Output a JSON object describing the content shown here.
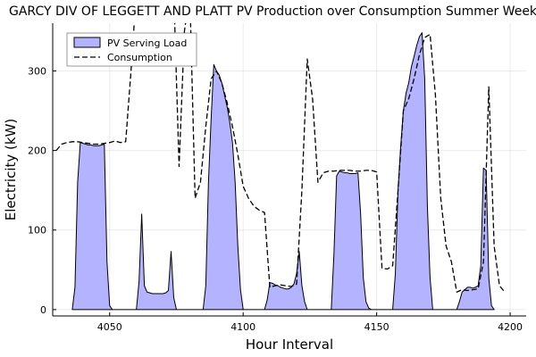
{
  "chart_data": {
    "type": "area",
    "title": "GARCY DIV OF LEGGETT AND PLATT PV Production over Consumption Summer Week",
    "xlabel": "Hour Interval",
    "ylabel": "Electricity (kW)",
    "xlim": [
      4029,
      4206
    ],
    "ylim": [
      -8,
      360
    ],
    "xticks": [
      4050,
      4100,
      4150,
      4200
    ],
    "xtick_labels": [
      "4050",
      "4100",
      "4150",
      "4200"
    ],
    "yticks": [
      0,
      100,
      200,
      300
    ],
    "ytick_labels": [
      "0",
      "100",
      "200",
      "300"
    ],
    "grid": true,
    "legend_position": "top-left",
    "series": [
      {
        "name": "PV Serving Load",
        "kind": "filled-area",
        "color": "#b3b3ff",
        "x": [
          4036,
          4037,
          4038,
          4039,
          4040,
          4041,
          4042,
          4043,
          4044,
          4045,
          4046,
          4047,
          4048,
          4049,
          4050,
          4051,
          4060,
          4061,
          4062,
          4063,
          4064,
          4065,
          4066,
          4067,
          4068,
          4069,
          4070,
          4071,
          4072,
          4073,
          4074,
          4075,
          4085,
          4086,
          4087,
          4088,
          4089,
          4090,
          4091,
          4092,
          4093,
          4094,
          4095,
          4096,
          4097,
          4098,
          4099,
          4100,
          4108,
          4109,
          4110,
          4111,
          4112,
          4113,
          4114,
          4115,
          4116,
          4117,
          4118,
          4119,
          4120,
          4121,
          4122,
          4123,
          4124,
          4133,
          4134,
          4135,
          4136,
          4137,
          4138,
          4139,
          4140,
          4141,
          4142,
          4143,
          4144,
          4145,
          4146,
          4147,
          4148,
          4156,
          4157,
          4158,
          4159,
          4160,
          4161,
          4162,
          4163,
          4164,
          4165,
          4166,
          4167,
          4168,
          4169,
          4170,
          4171,
          4180,
          4181,
          4182,
          4183,
          4184,
          4185,
          4186,
          4187,
          4188,
          4189,
          4190,
          4191,
          4192,
          4193,
          4194
        ],
        "y": [
          0,
          28,
          160,
          210,
          209,
          208,
          207,
          207,
          206,
          206,
          206,
          207,
          208,
          60,
          5,
          0,
          0,
          35,
          120,
          30,
          22,
          21,
          20,
          20,
          20,
          20,
          20,
          21,
          24,
          73,
          15,
          0,
          0,
          30,
          160,
          240,
          308,
          300,
          295,
          285,
          270,
          255,
          235,
          210,
          160,
          80,
          25,
          0,
          0,
          12,
          34,
          33,
          31,
          30,
          28,
          27,
          26,
          26,
          28,
          32,
          45,
          73,
          30,
          10,
          0,
          0,
          70,
          168,
          174,
          173,
          172,
          172,
          171,
          171,
          171,
          172,
          120,
          40,
          10,
          2,
          0,
          0,
          45,
          150,
          205,
          250,
          272,
          285,
          305,
          318,
          332,
          343,
          348,
          290,
          130,
          40,
          0,
          0,
          10,
          22,
          25,
          28,
          28,
          27,
          28,
          30,
          55,
          178,
          175,
          40,
          5,
          0
        ]
      },
      {
        "name": "Consumption",
        "kind": "dashed-line",
        "color": "#000000",
        "x": [
          4030,
          4032,
          4034,
          4036,
          4038,
          4040,
          4042,
          4044,
          4046,
          4048,
          4050,
          4052,
          4054,
          4056,
          4058,
          4060,
          4062,
          4064,
          4066,
          4068,
          4070,
          4072,
          4074,
          4076,
          4078,
          4080,
          4082,
          4084,
          4086,
          4088,
          4090,
          4092,
          4094,
          4096,
          4098,
          4100,
          4102,
          4104,
          4106,
          4108,
          4110,
          4112,
          4114,
          4116,
          4118,
          4120,
          4122,
          4124,
          4126,
          4128,
          4130,
          4132,
          4134,
          4136,
          4138,
          4140,
          4142,
          4144,
          4146,
          4148,
          4150,
          4152,
          4154,
          4156,
          4158,
          4160,
          4162,
          4164,
          4166,
          4168,
          4170,
          4172,
          4174,
          4176,
          4178,
          4180,
          4182,
          4184,
          4186,
          4188,
          4190,
          4192,
          4194,
          4196,
          4198
        ],
        "y": [
          200,
          208,
          210,
          211,
          211,
          210,
          209,
          208,
          208,
          209,
          210,
          212,
          210,
          211,
          300,
          400,
          400,
          400,
          400,
          400,
          400,
          400,
          400,
          180,
          350,
          400,
          140,
          160,
          230,
          290,
          300,
          285,
          260,
          230,
          195,
          155,
          140,
          130,
          125,
          122,
          28,
          30,
          31,
          30,
          29,
          32,
          150,
          315,
          265,
          160,
          172,
          174,
          174,
          175,
          175,
          175,
          174,
          174,
          175,
          175,
          173,
          52,
          51,
          55,
          150,
          250,
          265,
          290,
          320,
          342,
          346,
          270,
          140,
          80,
          60,
          22,
          25,
          24,
          25,
          26,
          60,
          280,
          80,
          30,
          22
        ]
      }
    ]
  }
}
